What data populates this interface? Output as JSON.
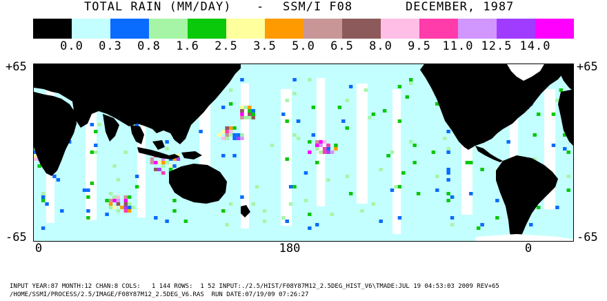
{
  "title": {
    "main": "TOTAL RAIN (MM/DAY)",
    "sep": "-",
    "sensor": "SSM/I F08",
    "date": "DECEMBER, 1987"
  },
  "legend": {
    "labels": [
      "0.0",
      "0.3",
      "0.8",
      "1.6",
      "2.5",
      "3.5",
      "5.0",
      "6.5",
      "8.0",
      "9.5",
      "11.0",
      "12.5",
      "14.0"
    ],
    "colors": [
      "#000000",
      "#c4ffff",
      "#0a6bff",
      "#a6f5a6",
      "#0ac80a",
      "#ffff9e",
      "#ff9a00",
      "#c89696",
      "#8c5a5a",
      "#ffbee6",
      "#ff3caa",
      "#d296ff",
      "#a03cff",
      "#ff00ff"
    ]
  },
  "axes": {
    "lat_top": "+65",
    "lat_bottom": "-65",
    "lon_labels": [
      "0",
      "180",
      "0"
    ]
  },
  "colors": {
    "land": "#000000",
    "ocean_base": "#c4ffff",
    "no_data": "#ffffff",
    "frame": "#000000"
  },
  "footer": {
    "line1": "INPUT YEAR:87 MONTH:12 CHAN:8 COLS:   1 144 ROWS:  1 52 INPUT:./2.5/HIST/F08Y87M12_2.5DEG_HIST_V6\\TMADE:JUL 19 04:53:03 2009 REV+65",
    "line2": "/HOME/SSMI/PROCESS/2.5/IMAGE/F08Y87M12_2.5DEG_V6.RAS  RUN DATE:07/19/09 07:26:27"
  }
}
